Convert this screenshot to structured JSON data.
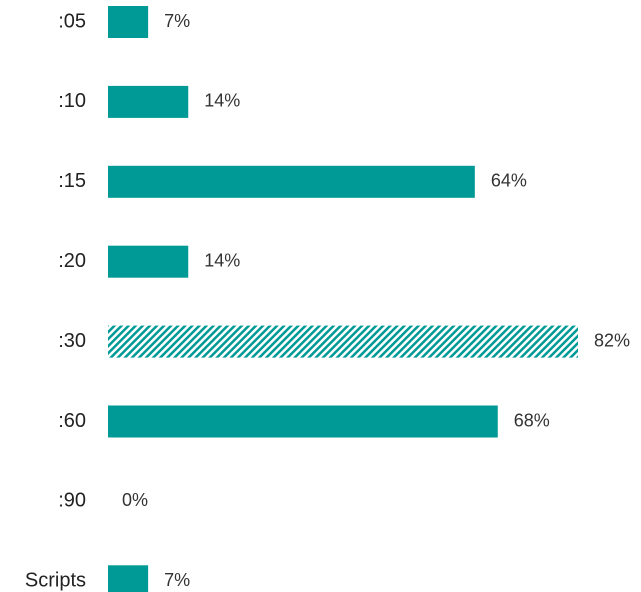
{
  "chart_data": {
    "type": "bar",
    "orientation": "horizontal",
    "title": "",
    "xlabel": "",
    "ylabel": "",
    "categories": [
      ":05",
      ":10",
      ":15",
      ":20",
      ":30",
      ":60",
      ":90",
      "Scripts"
    ],
    "values": [
      7,
      14,
      64,
      14,
      82,
      68,
      0,
      7
    ],
    "value_labels": [
      "7%",
      "14%",
      "64%",
      "14%",
      "82%",
      "68%",
      "0%",
      "7%"
    ],
    "highlighted_category": ":30",
    "highlight_style": "diagonal-hatch",
    "xlim": [
      0,
      82
    ],
    "grid": false,
    "legend": "none",
    "colors": {
      "bar": "#009a96",
      "text": "#222222",
      "value_text": "#333333"
    }
  }
}
